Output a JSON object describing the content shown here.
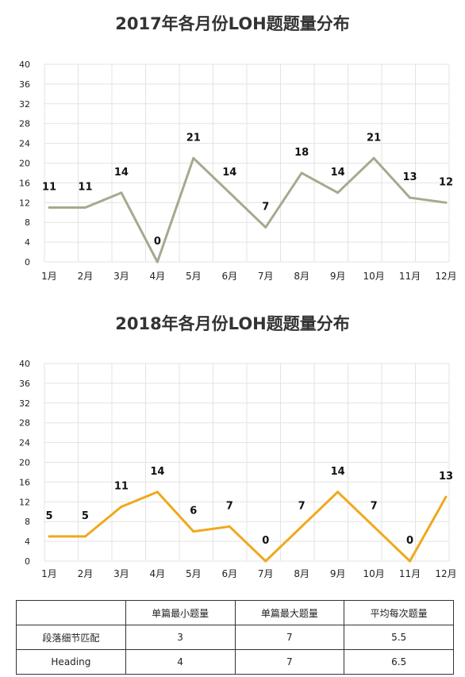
{
  "chart_data": [
    {
      "type": "line",
      "title": "2017年各月份LOH题题量分布",
      "categories": [
        "1月",
        "2月",
        "3月",
        "4月",
        "5月",
        "6月",
        "7月",
        "8月",
        "9月",
        "10月",
        "11月",
        "12月"
      ],
      "values": [
        11,
        11,
        14,
        0,
        21,
        14,
        7,
        18,
        14,
        21,
        13,
        12
      ],
      "ylim": [
        0,
        40
      ],
      "yticks": [
        0,
        4,
        8,
        12,
        16,
        20,
        24,
        28,
        32,
        36,
        40
      ],
      "grid": true,
      "color": "#a8a890"
    },
    {
      "type": "line",
      "title": "2018年各月份LOH题题量分布",
      "categories": [
        "1月",
        "2月",
        "3月",
        "4月",
        "5月",
        "6月",
        "7月",
        "8月",
        "9月",
        "10月",
        "11月",
        "12月"
      ],
      "values": [
        5,
        5,
        11,
        14,
        6,
        7,
        0,
        7,
        14,
        7,
        0,
        13
      ],
      "ylim": [
        0,
        40
      ],
      "yticks": [
        0,
        4,
        8,
        12,
        16,
        20,
        24,
        28,
        32,
        36,
        40
      ],
      "grid": true,
      "color": "#f0a81c"
    }
  ],
  "table": {
    "headers": [
      "",
      "单篇最小题量",
      "单篇最大题量",
      "平均每次题量"
    ],
    "rows": [
      [
        "段落细节匹配",
        "3",
        "7",
        "5.5"
      ],
      [
        "Heading",
        "4",
        "7",
        "6.5"
      ]
    ]
  }
}
